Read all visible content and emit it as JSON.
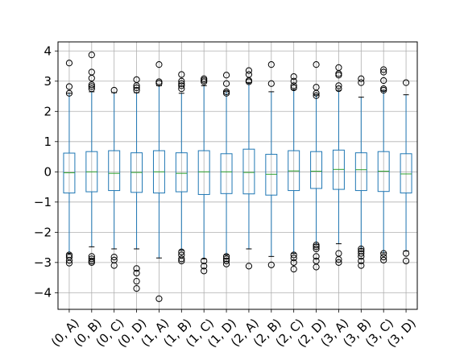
{
  "chart_data": {
    "type": "box",
    "categories": [
      "(0, A)",
      "(0, B)",
      "(0, C)",
      "(0, D)",
      "(1, A)",
      "(1, B)",
      "(1, C)",
      "(1, D)",
      "(2, A)",
      "(2, B)",
      "(2, C)",
      "(2, D)",
      "(3, A)",
      "(3, B)",
      "(3, C)",
      "(3, D)"
    ],
    "y_ticks": [
      -4,
      -3,
      -2,
      -1,
      0,
      1,
      2,
      3,
      4
    ],
    "y_tick_labels": [
      "−4",
      "−3",
      "−2",
      "−1",
      "0",
      "1",
      "2",
      "3",
      "4"
    ],
    "ylim": [
      -4.55,
      4.3
    ],
    "grid": true,
    "title": "",
    "xlabel": "",
    "ylabel": "",
    "colors": {
      "box": "#1f77b4",
      "median": "#2ca02c",
      "grid": "#b0b0b0",
      "axis": "#000000"
    },
    "boxes": [
      {
        "q1": -0.7,
        "median": -0.03,
        "q3": 0.62,
        "whisker_low": -2.7,
        "whisker_high": 2.6,
        "fliers": [
          3.6,
          2.82,
          2.6,
          -2.75,
          -2.82,
          -2.93,
          -3.02
        ]
      },
      {
        "q1": -0.66,
        "median": 0.0,
        "q3": 0.67,
        "whisker_low": -2.48,
        "whisker_high": 2.65,
        "fliers": [
          3.87,
          3.3,
          3.1,
          2.88,
          2.82,
          2.75,
          -2.8,
          -2.88,
          -2.95,
          -3.0
        ]
      },
      {
        "q1": -0.62,
        "median": -0.05,
        "q3": 0.7,
        "whisker_low": -2.55,
        "whisker_high": 2.62,
        "fliers": [
          2.7,
          -2.82,
          -2.92,
          -3.1
        ]
      },
      {
        "q1": -0.68,
        "median": -0.02,
        "q3": 0.63,
        "whisker_low": -2.55,
        "whisker_high": 2.62,
        "fliers": [
          3.05,
          2.85,
          2.78,
          2.7,
          -3.2,
          -3.35,
          -3.62,
          -3.86
        ]
      },
      {
        "q1": -0.7,
        "median": 0.0,
        "q3": 0.7,
        "whisker_low": -2.85,
        "whisker_high": 2.85,
        "fliers": [
          3.55,
          2.98,
          2.93,
          -4.2
        ]
      },
      {
        "q1": -0.66,
        "median": -0.05,
        "q3": 0.63,
        "whisker_low": -2.6,
        "whisker_high": 2.6,
        "fliers": [
          3.22,
          3.0,
          2.92,
          2.85,
          2.75,
          -2.65,
          -2.75,
          -2.88,
          -2.95
        ]
      },
      {
        "q1": -0.75,
        "median": 0.0,
        "q3": 0.7,
        "whisker_low": -2.88,
        "whisker_high": 2.85,
        "fliers": [
          3.08,
          3.03,
          2.98,
          -2.95,
          -3.12,
          -3.28
        ]
      },
      {
        "q1": -0.72,
        "median": 0.0,
        "q3": 0.6,
        "whisker_low": -2.75,
        "whisker_high": 2.65,
        "fliers": [
          3.2,
          2.92,
          2.65,
          2.6,
          -2.8,
          -2.88,
          -2.95,
          -3.05
        ]
      },
      {
        "q1": -0.73,
        "median": -0.02,
        "q3": 0.75,
        "whisker_low": -2.55,
        "whisker_high": 2.95,
        "fliers": [
          3.35,
          3.22,
          3.02,
          2.98,
          -3.12
        ]
      },
      {
        "q1": -0.77,
        "median": -0.08,
        "q3": 0.58,
        "whisker_low": -2.8,
        "whisker_high": 2.65,
        "fliers": [
          3.55,
          2.92,
          -3.08
        ]
      },
      {
        "q1": -0.62,
        "median": 0.03,
        "q3": 0.7,
        "whisker_low": -2.7,
        "whisker_high": 2.72,
        "fliers": [
          3.15,
          3.0,
          2.85,
          2.78,
          -2.75,
          -2.85,
          -3.0,
          -3.22
        ]
      },
      {
        "q1": -0.55,
        "median": 0.02,
        "q3": 0.67,
        "whisker_low": -2.4,
        "whisker_high": 2.55,
        "fliers": [
          3.55,
          2.8,
          2.6,
          2.52,
          -2.42,
          -2.48,
          -2.55,
          -2.8,
          -2.95,
          -3.15
        ]
      },
      {
        "q1": -0.58,
        "median": 0.08,
        "q3": 0.72,
        "whisker_low": -2.38,
        "whisker_high": 2.7,
        "fliers": [
          3.45,
          3.25,
          3.2,
          2.85,
          2.75,
          -2.7,
          -2.9,
          -3.0
        ]
      },
      {
        "q1": -0.62,
        "median": 0.07,
        "q3": 0.63,
        "whisker_low": -2.55,
        "whisker_high": 2.47,
        "fliers": [
          3.08,
          2.95,
          -2.55,
          -2.62,
          -2.7,
          -2.8,
          -2.95,
          -3.1
        ]
      },
      {
        "q1": -0.65,
        "median": 0.02,
        "q3": 0.67,
        "whisker_low": -2.68,
        "whisker_high": 2.7,
        "fliers": [
          3.38,
          3.3,
          3.02,
          2.75,
          2.7,
          -2.7,
          -2.82,
          -2.92
        ]
      },
      {
        "q1": -0.7,
        "median": -0.07,
        "q3": 0.6,
        "whisker_low": -2.62,
        "whisker_high": 2.55,
        "fliers": [
          2.95,
          -2.7,
          -2.95
        ]
      }
    ]
  }
}
